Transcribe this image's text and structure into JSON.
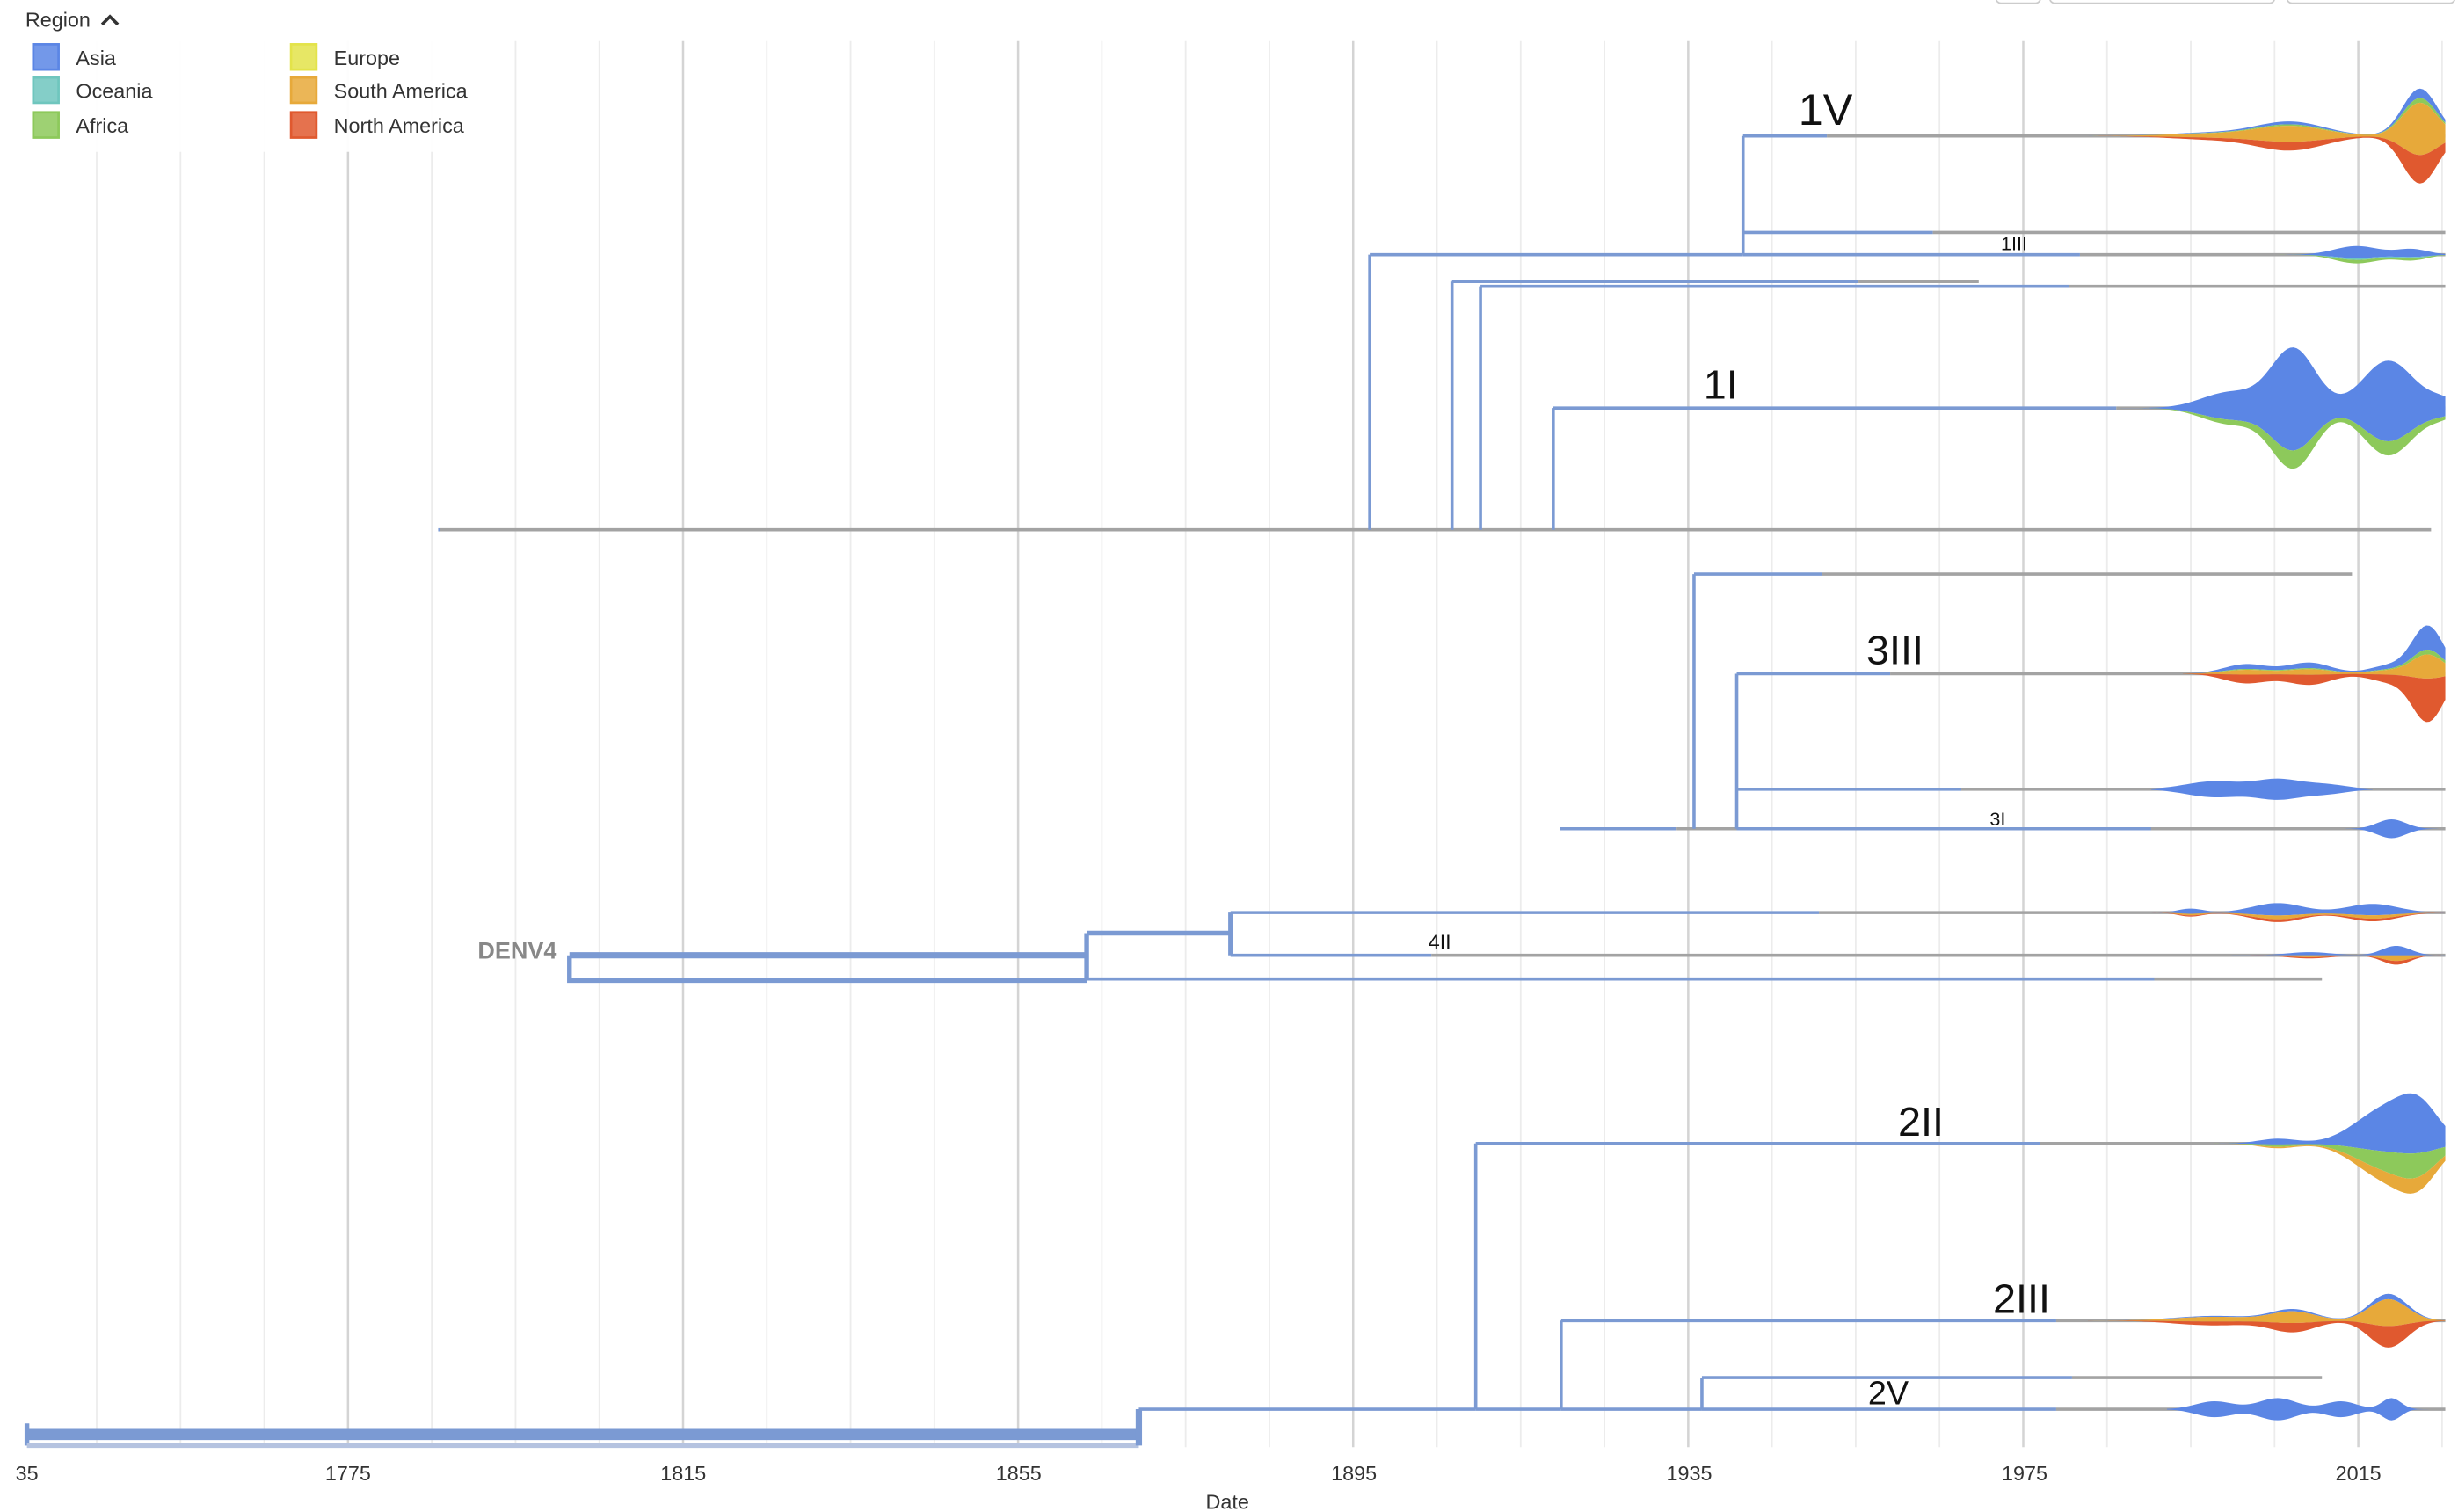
{
  "legend": {
    "title": "Region",
    "toggle_icon": "chevron-up-icon",
    "items": [
      {
        "label": "Asia",
        "color": "#5B86E5"
      },
      {
        "label": "Oceania",
        "color": "#6FC6BE"
      },
      {
        "label": "Africa",
        "color": "#8DC95B"
      },
      {
        "label": "Europe",
        "color": "#E3E34A"
      },
      {
        "label": "South America",
        "color": "#E7A93A"
      },
      {
        "label": "North America",
        "color": "#E0592F"
      }
    ]
  },
  "chart_data": {
    "type": "line",
    "xlabel": "Date",
    "x_tick_labels": [
      "35",
      "1775",
      "1815",
      "1855",
      "1895",
      "1935",
      "1975",
      "2015"
    ],
    "xlim": [
      1735,
      2026
    ],
    "grid": true,
    "legend_placement": "top-left",
    "branch_color": "#7B9AD3",
    "series": [
      {
        "name": "Asia",
        "color": "#5B86E5"
      },
      {
        "name": "Oceania",
        "color": "#6FC6BE"
      },
      {
        "name": "Africa",
        "color": "#8DC95B"
      },
      {
        "name": "Europe",
        "color": "#E3E34A"
      },
      {
        "name": "South America",
        "color": "#E7A93A"
      },
      {
        "name": "North America",
        "color": "#E0592F"
      }
    ],
    "clade_labels": [
      {
        "text": "1V",
        "x": 1951,
        "size": "large"
      },
      {
        "text": "1III",
        "x": 1973,
        "size": "small"
      },
      {
        "text": "1I",
        "x": 1939,
        "size": "large"
      },
      {
        "text": "3III",
        "x": 1960,
        "size": "large"
      },
      {
        "text": "3I",
        "x": 1972,
        "size": "small"
      },
      {
        "text": "DENV4",
        "x": 1798,
        "size": "node"
      },
      {
        "text": "4II",
        "x": 1902,
        "size": "small"
      },
      {
        "text": "2II",
        "x": 1963,
        "size": "large"
      },
      {
        "text": "2III",
        "x": 1976,
        "size": "large"
      },
      {
        "text": "2V",
        "x": 1956,
        "size": "medium"
      }
    ],
    "streams": [
      {
        "clade": "1V",
        "peak_year": 2022,
        "regions": {
          "Asia": 0.1,
          "Africa": 0.05,
          "South America": 0.55,
          "North America": 0.3
        }
      },
      {
        "clade": "1III",
        "peak_year": 2015,
        "regions": {
          "Asia": 0.7,
          "Africa": 0.2,
          "Oceania": 0.1
        }
      },
      {
        "clade": "1I",
        "peak_year": 2008,
        "regions": {
          "Asia": 0.85,
          "Africa": 0.15
        }
      },
      {
        "clade": "3III",
        "peak_year": 2024,
        "regions": {
          "Asia": 0.25,
          "Africa": 0.05,
          "South America": 0.25,
          "North America": 0.45
        }
      },
      {
        "clade": "3I",
        "peak_year": 2007,
        "regions": {
          "Asia": 1.0
        }
      },
      {
        "clade": "4II",
        "peak_year": 2014,
        "regions": {
          "Asia": 0.65,
          "South America": 0.2,
          "North America": 0.15
        }
      },
      {
        "clade": "2II",
        "peak_year": 2019,
        "regions": {
          "Asia": 0.6,
          "Africa": 0.25,
          "South America": 0.15
        }
      },
      {
        "clade": "2III",
        "peak_year": 2017,
        "regions": {
          "Asia": 0.1,
          "South America": 0.5,
          "North America": 0.4
        }
      },
      {
        "clade": "2V",
        "peak_year": 2013,
        "regions": {
          "Asia": 1.0
        }
      }
    ]
  }
}
